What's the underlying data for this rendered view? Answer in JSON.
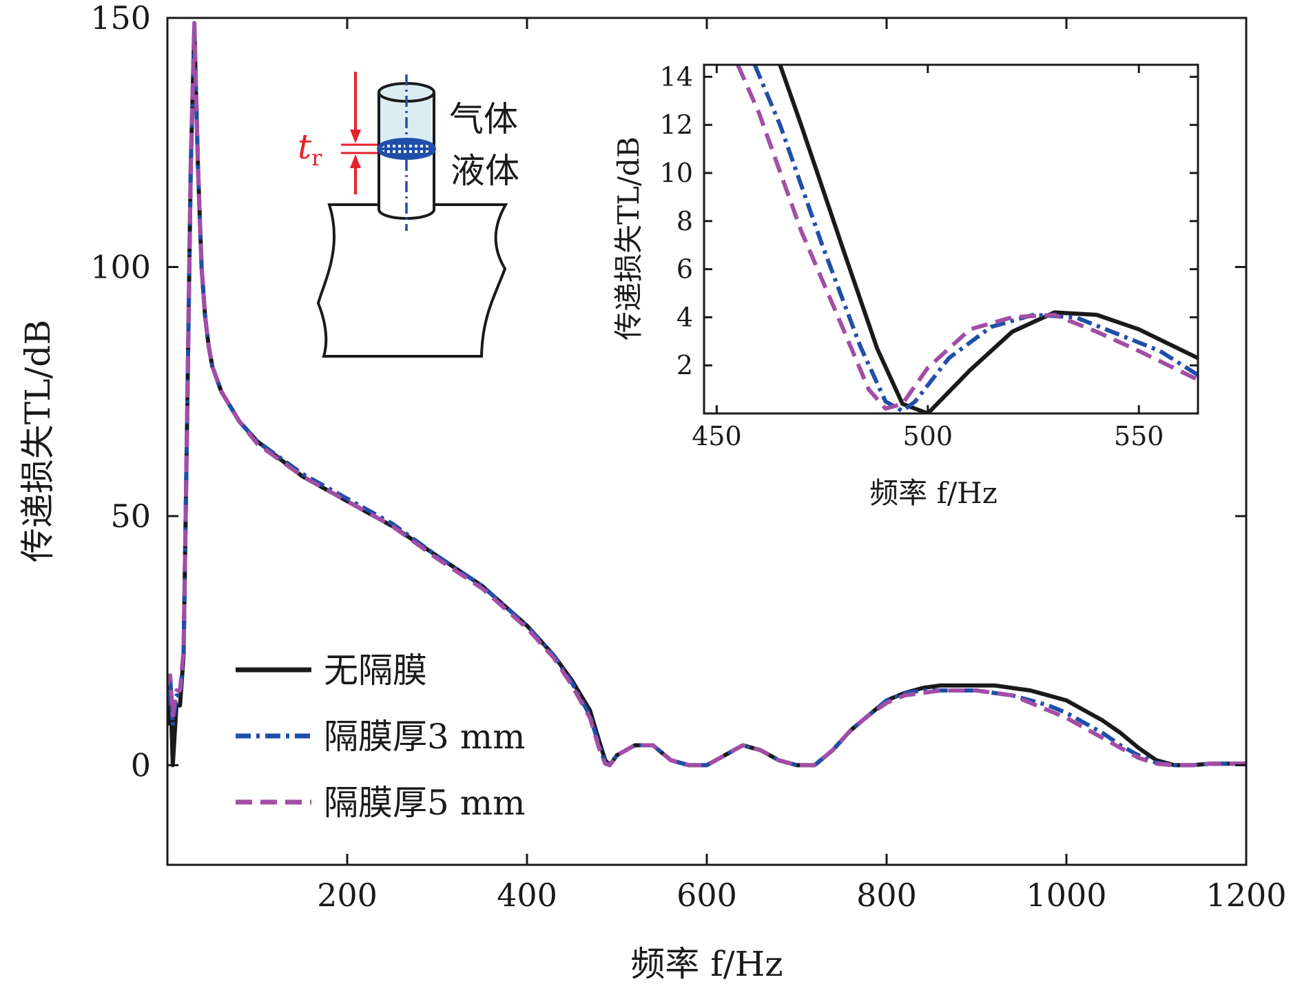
{
  "chart_data": [
    {
      "type": "line",
      "xlabel": "频率 f/Hz",
      "ylabel": "传递损失TL/dB",
      "xlim": [
        0,
        1200
      ],
      "ylim": [
        -20,
        150
      ],
      "xticks": [
        200,
        400,
        600,
        800,
        1000,
        1200
      ],
      "yticks": [
        0,
        50,
        100,
        150
      ],
      "legend_position": "bottom-left",
      "series": [
        {
          "name": "无隔膜",
          "color": "#1a1a1a",
          "style": "solid",
          "x": [
            0,
            3,
            6,
            10,
            14,
            18,
            22,
            26,
            30,
            34,
            38,
            42,
            46,
            50,
            60,
            80,
            100,
            150,
            200,
            250,
            300,
            350,
            400,
            430,
            450,
            470,
            480,
            487,
            492,
            500,
            520,
            540,
            560,
            580,
            600,
            620,
            640,
            660,
            680,
            700,
            720,
            740,
            760,
            780,
            800,
            820,
            840,
            860,
            880,
            900,
            920,
            940,
            960,
            980,
            1000,
            1020,
            1040,
            1060,
            1080,
            1100,
            1120,
            1140,
            1160,
            1180,
            1200
          ],
          "y": [
            8,
            18,
            0,
            12,
            12,
            22,
            70,
            120,
            148,
            120,
            100,
            90,
            84,
            80,
            75,
            69,
            65,
            58,
            53,
            48,
            42,
            36,
            28,
            22,
            17,
            11,
            5,
            1,
            0,
            2,
            4,
            4,
            1,
            0,
            0,
            2,
            4,
            3,
            1,
            0,
            0,
            3,
            7,
            10,
            13,
            14.5,
            15.5,
            16,
            16,
            16,
            16,
            15.5,
            15,
            14,
            13,
            11,
            9,
            6.5,
            3.5,
            1,
            0,
            0,
            0.3,
            0.3,
            0.3
          ]
        },
        {
          "name": "隔膜厚3 mm",
          "color": "#1f4fa8",
          "style": "dashdot",
          "x": [
            0,
            3,
            6,
            10,
            14,
            18,
            22,
            26,
            30,
            34,
            38,
            42,
            46,
            50,
            60,
            80,
            100,
            150,
            200,
            250,
            300,
            350,
            400,
            430,
            450,
            470,
            480,
            487,
            492,
            500,
            520,
            540,
            560,
            580,
            600,
            620,
            640,
            660,
            680,
            700,
            720,
            740,
            760,
            780,
            800,
            820,
            840,
            860,
            880,
            900,
            920,
            940,
            960,
            980,
            1000,
            1020,
            1040,
            1060,
            1080,
            1100,
            1120,
            1140,
            1160,
            1180,
            1200
          ],
          "y": [
            12,
            18,
            8,
            14,
            14,
            22,
            70,
            120,
            148,
            120,
            100,
            90,
            84,
            80,
            75,
            69,
            65,
            58.5,
            53.5,
            48.5,
            42,
            36,
            28,
            22,
            16.5,
            10,
            4,
            0.5,
            0,
            2,
            4,
            4,
            1,
            0,
            0,
            2,
            4,
            3,
            1,
            0,
            0,
            3,
            7,
            10,
            13,
            14.5,
            15,
            15,
            15,
            15,
            14.5,
            14,
            13,
            12,
            10.5,
            8.5,
            6.5,
            4,
            2,
            0.5,
            0,
            0,
            0.3,
            0.3,
            0.3
          ]
        },
        {
          "name": "隔膜厚5 mm",
          "color": "#a24ea6",
          "style": "dashed",
          "x": [
            0,
            3,
            6,
            10,
            14,
            18,
            22,
            26,
            30,
            34,
            38,
            42,
            46,
            50,
            60,
            80,
            100,
            150,
            200,
            250,
            300,
            350,
            400,
            430,
            450,
            470,
            480,
            487,
            492,
            500,
            520,
            540,
            560,
            580,
            600,
            620,
            640,
            660,
            680,
            700,
            720,
            740,
            760,
            780,
            800,
            820,
            840,
            860,
            880,
            900,
            920,
            940,
            960,
            980,
            1000,
            1020,
            1040,
            1060,
            1080,
            1100,
            1120,
            1140,
            1160,
            1180,
            1200
          ],
          "y": [
            16,
            18,
            10,
            15,
            15,
            23,
            70,
            121,
            149,
            120,
            100,
            90,
            84,
            80,
            75,
            69,
            64.5,
            58,
            53,
            48,
            41.5,
            35.5,
            27.5,
            21.5,
            16,
            9.5,
            3.5,
            0.3,
            0,
            2,
            4,
            4,
            1,
            0,
            0,
            2,
            4,
            3,
            1,
            0,
            0,
            3,
            7,
            10,
            12.5,
            14,
            14.5,
            15,
            15,
            15,
            14.5,
            14,
            12.5,
            11,
            9.5,
            7.5,
            5.5,
            3.5,
            1.5,
            0.3,
            0,
            0,
            0.3,
            0.3,
            0.3
          ]
        }
      ]
    },
    {
      "type": "line",
      "xlabel": "频率 f/Hz",
      "ylabel": "传递损失TL/dB",
      "xlim": [
        447,
        564
      ],
      "ylim": [
        0,
        14.5
      ],
      "xticks": [
        450,
        500,
        550
      ],
      "yticks": [
        2,
        4,
        6,
        8,
        10,
        12,
        14
      ],
      "series": [
        {
          "name": "无隔膜",
          "color": "#1a1a1a",
          "style": "solid",
          "x": [
            465,
            470,
            480,
            488,
            494,
            500,
            510,
            520,
            530,
            540,
            550,
            564
          ],
          "y": [
            14.5,
            12,
            6.8,
            2.7,
            0.4,
            0,
            1.8,
            3.4,
            4.2,
            4.1,
            3.5,
            2.3
          ]
        },
        {
          "name": "隔膜厚3 mm",
          "color": "#1f4fa8",
          "style": "dashdot",
          "x": [
            459,
            465,
            475,
            484,
            490,
            494,
            497,
            505,
            515,
            525,
            535,
            545,
            555,
            564
          ],
          "y": [
            14.5,
            12,
            7,
            2.8,
            0.5,
            0.1,
            0.5,
            2.3,
            3.6,
            4.1,
            4,
            3.3,
            2.6,
            1.6
          ]
        },
        {
          "name": "隔膜厚5 mm",
          "color": "#a24ea6",
          "style": "dashed",
          "x": [
            455,
            460,
            470,
            480,
            486,
            490,
            494,
            500,
            510,
            520,
            530,
            540,
            550,
            564
          ],
          "y": [
            14.5,
            12.5,
            7.6,
            3.5,
            1,
            0.2,
            0.4,
            1.9,
            3.5,
            4,
            4.1,
            3.4,
            2.6,
            1.4
          ]
        }
      ]
    }
  ],
  "legend": {
    "items": [
      "无隔膜",
      "隔膜厚3 mm",
      "隔膜厚5 mm"
    ]
  },
  "diagram": {
    "gas_label": "气体",
    "liquid_label": "液体",
    "thickness_symbol": "t",
    "thickness_subscript": "r",
    "accent_color": "#e8202a"
  },
  "colors": {
    "axis": "#1a1a1a",
    "series_black": "#1a1a1a",
    "series_blue": "#1f4fa8",
    "series_purple": "#a24ea6"
  }
}
